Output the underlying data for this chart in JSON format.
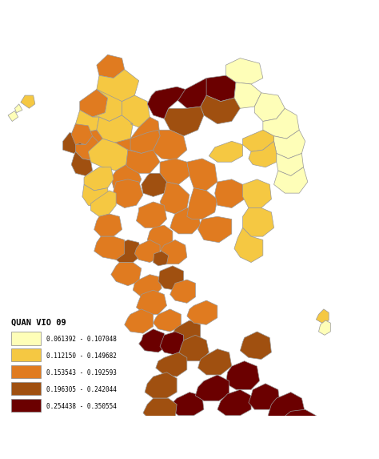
{
  "legend_title": "QUAN VIO 09",
  "legend_labels": [
    "0.061392 - 0.107048",
    "0.112150 - 0.149682",
    "0.153543 - 0.192593",
    "0.196305 - 0.242044",
    "0.254438 - 0.350554"
  ],
  "colors": [
    "#FEFEB8",
    "#F5C842",
    "#E07B20",
    "#A05010",
    "#6B0000"
  ],
  "background_color": "#FFFFFF",
  "border_color": "#999999",
  "figure_width": 4.74,
  "figure_height": 5.73,
  "dpi": 100
}
